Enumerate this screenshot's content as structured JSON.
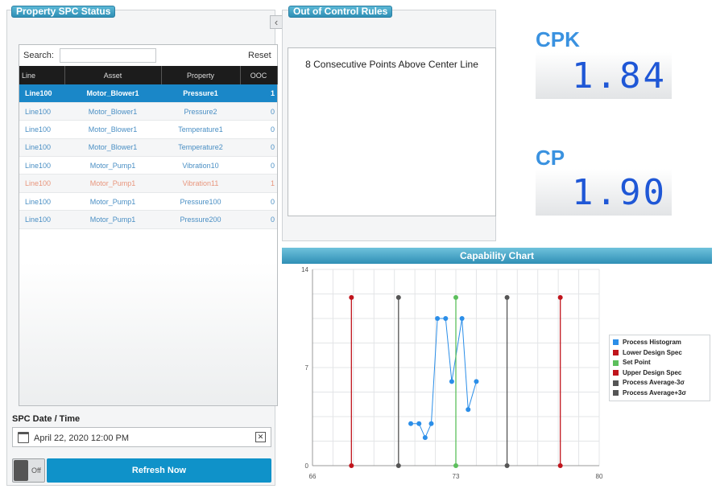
{
  "spc_panel": {
    "title": "Property SPC Status",
    "collapse_icon": "chevron-left-icon",
    "search_label": "Search:",
    "search_value": "",
    "reset_label": "Reset",
    "columns": [
      "Line",
      "Asset",
      "Property",
      "OOC"
    ],
    "rows": [
      {
        "line": "Line100",
        "asset": "Motor_Blower1",
        "property": "Pressure1",
        "ooc": "1",
        "selected": true
      },
      {
        "line": "Line100",
        "asset": "Motor_Blower1",
        "property": "Pressure2",
        "ooc": "0"
      },
      {
        "line": "Line100",
        "asset": "Motor_Blower1",
        "property": "Temperature1",
        "ooc": "0"
      },
      {
        "line": "Line100",
        "asset": "Motor_Blower1",
        "property": "Temperature2",
        "ooc": "0"
      },
      {
        "line": "Line100",
        "asset": "Motor_Pump1",
        "property": "Vibration10",
        "ooc": "0"
      },
      {
        "line": "Line100",
        "asset": "Motor_Pump1",
        "property": "Vibration11",
        "ooc": "1"
      },
      {
        "line": "Line100",
        "asset": "Motor_Pump1",
        "property": "Pressure100",
        "ooc": "0"
      },
      {
        "line": "Line100",
        "asset": "Motor_Pump1",
        "property": "Pressure200",
        "ooc": "0"
      }
    ],
    "date_label": "SPC Date / Time",
    "date_value": "April 22, 2020 12:00 PM",
    "toggle_label": "Off",
    "refresh_label": "Refresh Now"
  },
  "ooc_panel": {
    "title": "Out of Control Rules",
    "rule": "8 Consecutive Points Above Center Line"
  },
  "metrics": {
    "cpk_label": "CPK",
    "cpk_value": "1.84",
    "cp_label": "CP",
    "cp_value": "1.90"
  },
  "chart_data": {
    "type": "line",
    "title": "Capability Chart",
    "xlim": [
      66,
      80
    ],
    "ylim": [
      0,
      14
    ],
    "x_ticks": [
      "66",
      "73",
      "80"
    ],
    "y_ticks": [
      "0",
      "7",
      "14"
    ],
    "grid": true,
    "legend_position": "right",
    "series": [
      {
        "name": "Process Histogram",
        "color": "#2b8ee8",
        "kind": "line",
        "points": [
          [
            70.8,
            3
          ],
          [
            71.2,
            3
          ],
          [
            71.5,
            2
          ],
          [
            71.8,
            3
          ],
          [
            72.1,
            10.5
          ],
          [
            72.5,
            10.5
          ],
          [
            72.8,
            6
          ],
          [
            73.3,
            10.5
          ],
          [
            73.6,
            4
          ],
          [
            74.0,
            6
          ]
        ]
      },
      {
        "name": "Lower Design Spec",
        "color": "#c0141c",
        "kind": "vline",
        "x": 67.9,
        "y": 12
      },
      {
        "name": "Set Point",
        "color": "#5cbf5c",
        "kind": "vline",
        "x": 73.0,
        "y": 12
      },
      {
        "name": "Upper Design Spec",
        "color": "#c0141c",
        "kind": "vline",
        "x": 78.1,
        "y": 12
      },
      {
        "name": "Process Average-3σ",
        "color": "#555555",
        "kind": "vline",
        "x": 70.2,
        "y": 12
      },
      {
        "name": "Process Average+3σ",
        "color": "#555555",
        "kind": "vline",
        "x": 75.5,
        "y": 12
      }
    ]
  }
}
